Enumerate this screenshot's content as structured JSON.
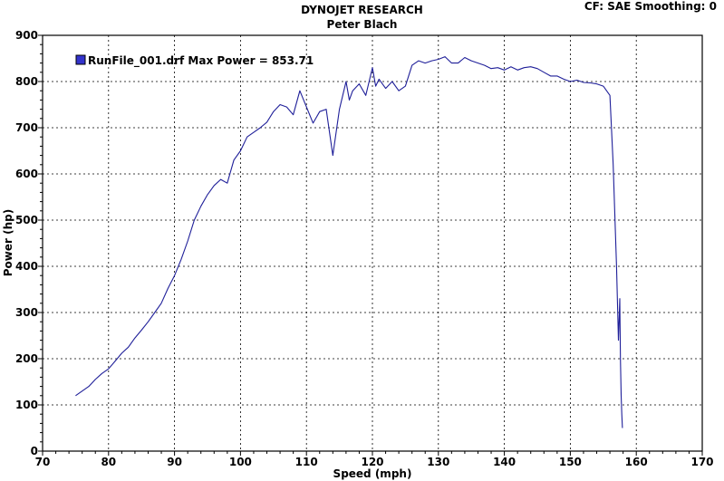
{
  "header": {
    "title": "DYNOJET RESEARCH",
    "subtitle": "Peter Blach",
    "settings": "CF: SAE  Smoothing: 0"
  },
  "colors": {
    "series": "#1f1f99",
    "legend_swatch": "#3333cc",
    "frame": "#000000",
    "grid": "#000000",
    "background": "#ffffff"
  },
  "chart_data": {
    "type": "line",
    "xlabel": "Speed (mph)",
    "ylabel": "Power (hp)",
    "xlim": [
      70,
      170
    ],
    "ylim": [
      0,
      900
    ],
    "xticks": [
      70,
      80,
      90,
      100,
      110,
      120,
      130,
      140,
      150,
      160,
      170
    ],
    "yticks": [
      0,
      100,
      200,
      300,
      400,
      500,
      600,
      700,
      800,
      900
    ],
    "grid": true,
    "legend_position": "top-left",
    "series": [
      {
        "name": "RunFile_001.drf Max Power = 853.71",
        "x": [
          75,
          76,
          77,
          78,
          79,
          80,
          81,
          82,
          83,
          84,
          85,
          86,
          87,
          88,
          89,
          90,
          91,
          92,
          93,
          94,
          95,
          96,
          97,
          98,
          99,
          100,
          101,
          102,
          103,
          104,
          105,
          106,
          107,
          108,
          109,
          110,
          111,
          112,
          113,
          114,
          115,
          116,
          116.5,
          117,
          118,
          119,
          120,
          120.5,
          121,
          122,
          123,
          124,
          125,
          126,
          127,
          128,
          129,
          130,
          131,
          132,
          133,
          134,
          135,
          136,
          137,
          138,
          139,
          140,
          141,
          142,
          143,
          144,
          145,
          146,
          147,
          148,
          149,
          150,
          151,
          152,
          153,
          154,
          155,
          156,
          156.5,
          157,
          157.3,
          157.5,
          157.6,
          157.7,
          157.8,
          157.9
        ],
        "y": [
          120,
          130,
          140,
          155,
          168,
          178,
          195,
          212,
          225,
          245,
          262,
          280,
          300,
          320,
          352,
          380,
          415,
          455,
          500,
          530,
          555,
          575,
          588,
          580,
          630,
          650,
          680,
          690,
          700,
          712,
          735,
          750,
          745,
          728,
          780,
          745,
          710,
          735,
          740,
          640,
          740,
          800,
          760,
          780,
          795,
          770,
          830,
          790,
          805,
          785,
          800,
          780,
          790,
          835,
          845,
          840,
          845,
          848,
          853.71,
          840,
          840,
          852,
          845,
          840,
          835,
          828,
          830,
          825,
          832,
          825,
          830,
          832,
          828,
          820,
          812,
          812,
          805,
          800,
          803,
          798,
          797,
          795,
          790,
          770,
          620,
          400,
          240,
          330,
          200,
          120,
          80,
          50
        ]
      }
    ]
  }
}
